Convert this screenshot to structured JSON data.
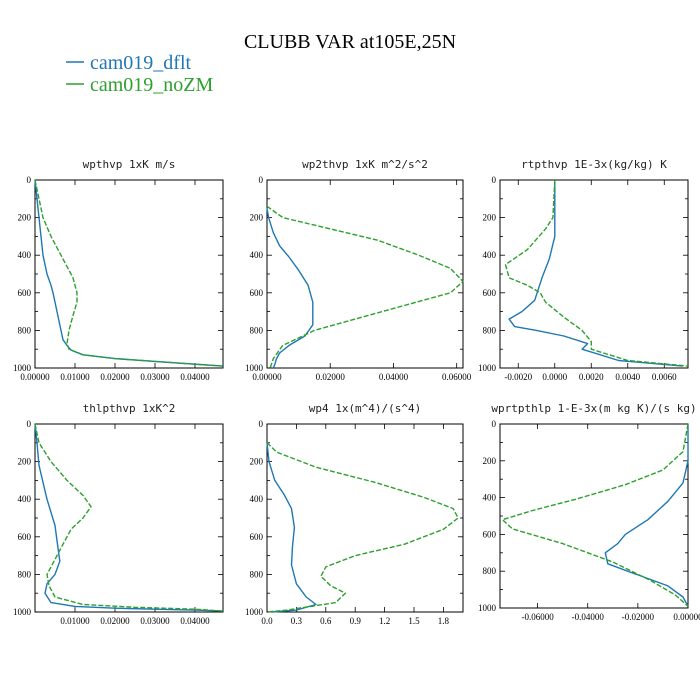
{
  "title": "CLUBB VAR at105E,25N",
  "legend": [
    {
      "label": "cam019_dflt",
      "color": "#1f77b4"
    },
    {
      "label": "cam019_noZM",
      "color": "#2ca02c"
    }
  ],
  "chart_data": [
    {
      "type": "line",
      "title": "wpthvp   1xK m/s",
      "xlim": [
        0,
        0.047
      ],
      "ylim": [
        1000,
        0
      ],
      "xticks": [
        0,
        0.01,
        0.02,
        0.03,
        0.04
      ],
      "xtick_labels": [
        "0.00000",
        "0.01000",
        "0.02000",
        "0.03000",
        "0.04000"
      ],
      "yticks": [
        0,
        200,
        400,
        600,
        800,
        1000
      ],
      "ytick_labels": [
        "0",
        "200",
        "400",
        "600",
        "800",
        "1000"
      ],
      "series": [
        {
          "name": "cam019_dflt",
          "color": "#1f77b4",
          "dashed": false,
          "x": [
            0,
            0.0005,
            0.001,
            0.0015,
            0.002,
            0.003,
            0.004,
            0.0045,
            0.005,
            0.006,
            0.007,
            0.008,
            0.009,
            0.012,
            0.02,
            0.03,
            0.04,
            0.047
          ],
          "y": [
            0,
            100,
            200,
            300,
            400,
            500,
            560,
            600,
            650,
            750,
            850,
            880,
            905,
            930,
            950,
            965,
            980,
            990
          ]
        },
        {
          "name": "cam019_noZM",
          "color": "#2ca02c",
          "dashed": true,
          "x": [
            0,
            0.001,
            0.002,
            0.004,
            0.007,
            0.0095,
            0.0105,
            0.0105,
            0.0095,
            0.0085,
            0.008,
            0.0085,
            0.012,
            0.02,
            0.03,
            0.04,
            0.047
          ],
          "y": [
            0,
            100,
            200,
            300,
            420,
            520,
            600,
            650,
            720,
            800,
            870,
            900,
            930,
            950,
            965,
            980,
            990
          ]
        }
      ]
    },
    {
      "type": "line",
      "title": "wp2thvp   1xK m^2/s^2",
      "xlim": [
        0,
        0.062
      ],
      "ylim": [
        1000,
        0
      ],
      "xticks": [
        0,
        0.02,
        0.04,
        0.06
      ],
      "xtick_labels": [
        "0.00000",
        "0.02000",
        "0.04000",
        "0.06000"
      ],
      "yticks": [
        0,
        200,
        400,
        600,
        800,
        1000
      ],
      "ytick_labels": [
        "0",
        "200",
        "400",
        "600",
        "800",
        "1000"
      ],
      "series": [
        {
          "name": "cam019_dflt",
          "color": "#1f77b4",
          "dashed": false,
          "x": [
            0,
            0.0005,
            0.002,
            0.004,
            0.007,
            0.01,
            0.013,
            0.0145,
            0.0145,
            0.012,
            0.007,
            0.004,
            0.003,
            0.0025,
            0.002
          ],
          "y": [
            150,
            200,
            280,
            350,
            410,
            480,
            560,
            650,
            770,
            830,
            880,
            920,
            950,
            980,
            1000
          ]
        },
        {
          "name": "cam019_noZM",
          "color": "#2ca02c",
          "dashed": true,
          "x": [
            0,
            0.005,
            0.02,
            0.035,
            0.048,
            0.058,
            0.062,
            0.058,
            0.045,
            0.03,
            0.015,
            0.005,
            0.002,
            0.001
          ],
          "y": [
            140,
            200,
            260,
            320,
            400,
            470,
            540,
            600,
            660,
            730,
            800,
            880,
            950,
            1000
          ]
        }
      ]
    },
    {
      "type": "line",
      "title": "rtpthvp   1E-3x(kg/kg) K",
      "xlim": [
        -0.003,
        0.0073
      ],
      "ylim": [
        1000,
        0
      ],
      "xticks": [
        -0.002,
        0,
        0.002,
        0.004,
        0.006
      ],
      "xtick_labels": [
        "-0.0020",
        "0.0000",
        "0.0020",
        "0.0040",
        "0.0060"
      ],
      "yticks": [
        0,
        200,
        400,
        600,
        800,
        1000
      ],
      "ytick_labels": [
        "0",
        "200",
        "400",
        "600",
        "800",
        "1000"
      ],
      "series": [
        {
          "name": "cam019_dflt",
          "color": "#1f77b4",
          "dashed": false,
          "x": [
            0,
            0,
            0,
            -0.0003,
            -0.0007,
            -0.0011,
            -0.0018,
            -0.0025,
            -0.0022,
            -0.001,
            0.0005,
            0.0018,
            0.0015,
            0.0035,
            0.007
          ],
          "y": [
            0,
            150,
            300,
            420,
            520,
            640,
            700,
            740,
            780,
            800,
            830,
            870,
            900,
            960,
            990
          ]
        },
        {
          "name": "cam019_noZM",
          "color": "#2ca02c",
          "dashed": true,
          "x": [
            0,
            -0.0001,
            -0.0005,
            -0.0015,
            -0.0027,
            -0.0025,
            -0.0015,
            -0.0008,
            -0.0005,
            0.0005,
            0.0015,
            0.002,
            0.002,
            0.004,
            0.0073
          ],
          "y": [
            0,
            200,
            260,
            370,
            450,
            520,
            560,
            600,
            650,
            730,
            800,
            860,
            900,
            960,
            990
          ]
        }
      ]
    },
    {
      "type": "line",
      "title": "thlpthvp   1xK^2",
      "xlim": [
        0,
        0.047
      ],
      "ylim": [
        1000,
        0
      ],
      "xticks": [
        0.01,
        0.02,
        0.03,
        0.04
      ],
      "xtick_labels": [
        "0.01000",
        "0.02000",
        "0.03000",
        "0.04000"
      ],
      "yticks": [
        0,
        200,
        400,
        600,
        800,
        1000
      ],
      "ytick_labels": [
        "0",
        "200",
        "400",
        "600",
        "800",
        "1000"
      ],
      "series": [
        {
          "name": "cam019_dflt",
          "color": "#1f77b4",
          "dashed": false,
          "x": [
            0,
            0.0005,
            0.001,
            0.003,
            0.005,
            0.0055,
            0.0062,
            0.005,
            0.003,
            0.0025,
            0.004,
            0.01,
            0.02,
            0.03,
            0.04,
            0.047
          ],
          "y": [
            0,
            100,
            220,
            400,
            540,
            620,
            730,
            800,
            850,
            900,
            950,
            970,
            980,
            985,
            990,
            995
          ]
        },
        {
          "name": "cam019_noZM",
          "color": "#2ca02c",
          "dashed": true,
          "x": [
            0,
            0.001,
            0.004,
            0.008,
            0.012,
            0.014,
            0.012,
            0.009,
            0.007,
            0.005,
            0.003,
            0.0035,
            0.005,
            0.012,
            0.025,
            0.04,
            0.047
          ],
          "y": [
            0,
            100,
            200,
            300,
            380,
            440,
            500,
            560,
            640,
            720,
            800,
            860,
            920,
            960,
            975,
            985,
            995
          ]
        }
      ]
    },
    {
      "type": "line",
      "title": "wp4   1x(m^4)/(s^4)",
      "xlim": [
        0,
        2.0
      ],
      "ylim": [
        1000,
        0
      ],
      "xticks": [
        0,
        0.3,
        0.6,
        0.9,
        1.2,
        1.5,
        1.8
      ],
      "xtick_labels": [
        "0.0",
        "0.3",
        "0.6",
        "0.9",
        "1.2",
        "1.5",
        "1.8"
      ],
      "yticks": [
        0,
        200,
        400,
        600,
        800,
        1000
      ],
      "ytick_labels": [
        "0",
        "200",
        "400",
        "600",
        "800",
        "1000"
      ],
      "series": [
        {
          "name": "cam019_dflt",
          "color": "#1f77b4",
          "dashed": false,
          "x": [
            0,
            0.02,
            0.08,
            0.18,
            0.25,
            0.28,
            0.26,
            0.25,
            0.3,
            0.4,
            0.5,
            0.3,
            0.05
          ],
          "y": [
            100,
            200,
            300,
            380,
            450,
            550,
            650,
            750,
            850,
            920,
            960,
            990,
            1000
          ]
        },
        {
          "name": "cam019_noZM",
          "color": "#2ca02c",
          "dashed": true,
          "x": [
            0,
            0.1,
            0.5,
            1.1,
            1.6,
            1.9,
            1.95,
            1.8,
            1.4,
            0.9,
            0.6,
            0.55,
            0.65,
            0.8,
            0.7,
            0.2,
            0
          ],
          "y": [
            100,
            150,
            230,
            310,
            390,
            450,
            500,
            560,
            640,
            700,
            760,
            810,
            860,
            900,
            950,
            990,
            1000
          ]
        }
      ]
    },
    {
      "type": "line",
      "title": "wprtpthlp   1-E-3x(m kg K)/(s kg)",
      "xlim": [
        -0.075,
        0
      ],
      "ylim": [
        1000,
        0
      ],
      "xticks": [
        -0.06,
        -0.04,
        -0.02,
        0
      ],
      "xtick_labels": [
        "-0.06000",
        "-0.04000",
        "-0.02000",
        "0.00000"
      ],
      "yticks": [
        0,
        200,
        400,
        600,
        800,
        1000
      ],
      "ytick_labels": [
        "0",
        "200",
        "400",
        "600",
        "800",
        "1000"
      ],
      "series": [
        {
          "name": "cam019_dflt",
          "color": "#1f77b4",
          "dashed": false,
          "x": [
            0,
            0,
            -0.002,
            -0.008,
            -0.016,
            -0.025,
            -0.028,
            -0.033,
            -0.032,
            -0.02,
            -0.008,
            -0.002,
            0
          ],
          "y": [
            0,
            200,
            320,
            420,
            520,
            600,
            650,
            700,
            760,
            820,
            880,
            940,
            990
          ]
        },
        {
          "name": "cam019_noZM",
          "color": "#2ca02c",
          "dashed": true,
          "x": [
            0,
            -0.002,
            -0.01,
            -0.025,
            -0.045,
            -0.062,
            -0.074,
            -0.07,
            -0.05,
            -0.03,
            -0.015,
            -0.005,
            0
          ],
          "y": [
            0,
            150,
            250,
            330,
            410,
            470,
            520,
            570,
            650,
            750,
            850,
            930,
            990
          ]
        }
      ]
    }
  ]
}
